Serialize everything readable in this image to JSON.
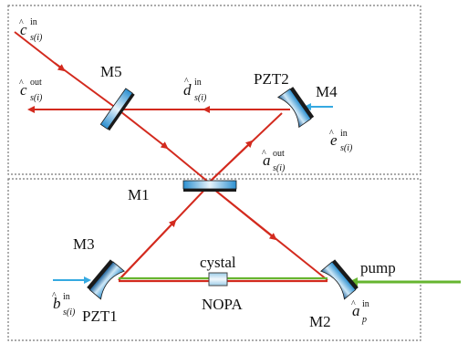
{
  "labels": {
    "m5": "M5",
    "pzt2": "PZT2",
    "m4": "M4",
    "m1": "M1",
    "m3": "M3",
    "pzt1": "PZT1",
    "m2": "M2",
    "crystal": "cystal",
    "nopa": "NOPA",
    "pump": "pump"
  },
  "symbols": {
    "c_in": {
      "base": "c",
      "sup": "in",
      "sub": "s(i)"
    },
    "c_out": {
      "base": "c",
      "sup": "out",
      "sub": "s(i)"
    },
    "d_in": {
      "base": "d",
      "sup": "in",
      "sub": "s(i)"
    },
    "e_in": {
      "base": "e",
      "sup": "in",
      "sub": "s(i)"
    },
    "a_out": {
      "base": "a",
      "sup": "out",
      "sub": "s(i)"
    },
    "b_in": {
      "base": "b",
      "sup": "in",
      "sub": "s(i)"
    },
    "a_p_in": {
      "base": "a",
      "sup": "in",
      "sub": "p"
    }
  },
  "colors": {
    "beam": "#d32a1e",
    "input_beam": "#35a9e1",
    "pump_beam": "#66b52f",
    "mirror": "#2b8fd0",
    "mirror_back": "#1a1a1a"
  }
}
